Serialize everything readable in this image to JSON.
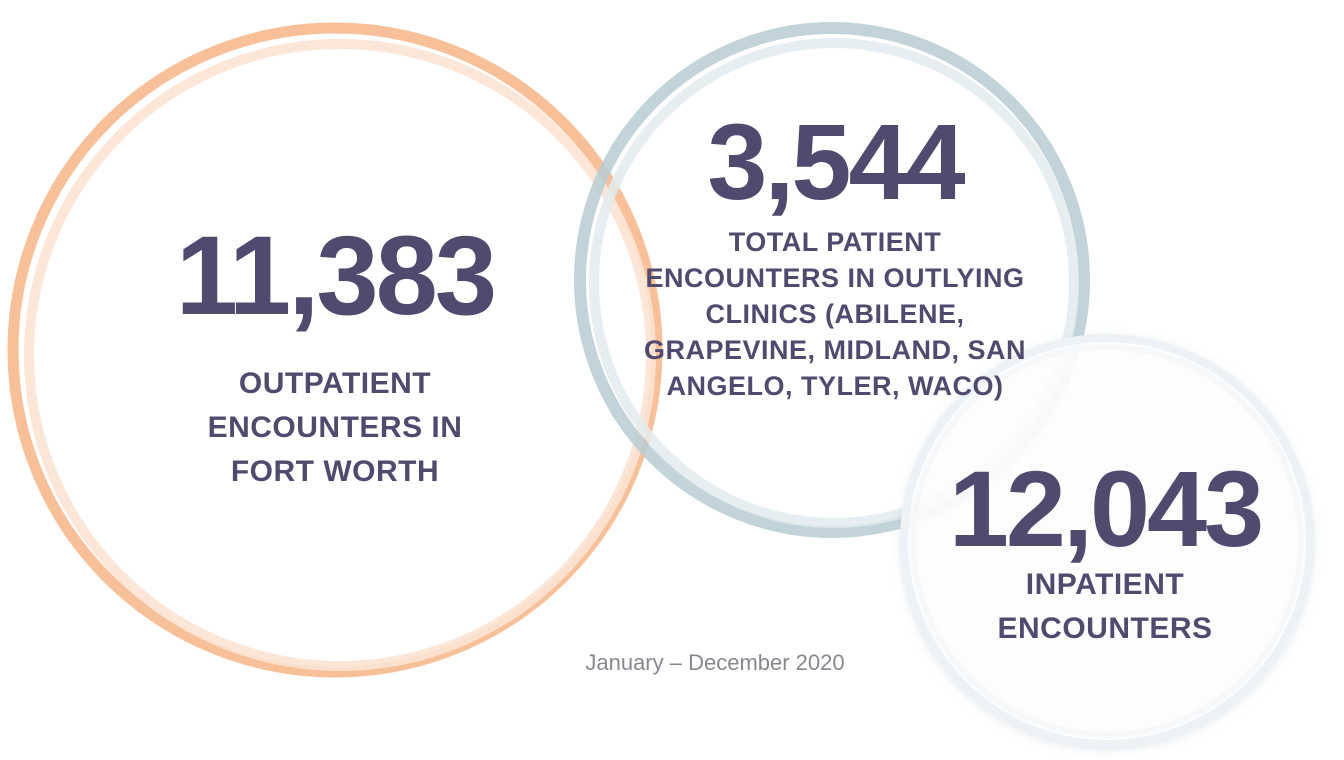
{
  "stats": {
    "outpatient": {
      "value": "11,383",
      "label_lines": [
        "OUTPATIENT",
        "ENCOUNTERS IN",
        "FORT WORTH"
      ]
    },
    "outlying": {
      "value": "3,544",
      "label_lines": [
        "TOTAL PATIENT",
        "ENCOUNTERS IN OUTLYING",
        "CLINICS (ABILENE,",
        "GRAPEVINE, MIDLAND, SAN",
        "ANGELO, TYLER, WACO)"
      ]
    },
    "inpatient": {
      "value": "12,043",
      "label_lines": [
        "INPATIENT",
        "ENCOUNTERS"
      ]
    }
  },
  "period": "January – December 2020",
  "colors": {
    "text": "#524a6e",
    "orange": "#f6b98e",
    "blue": "#b7ccd4",
    "light": "#eef2f5"
  }
}
